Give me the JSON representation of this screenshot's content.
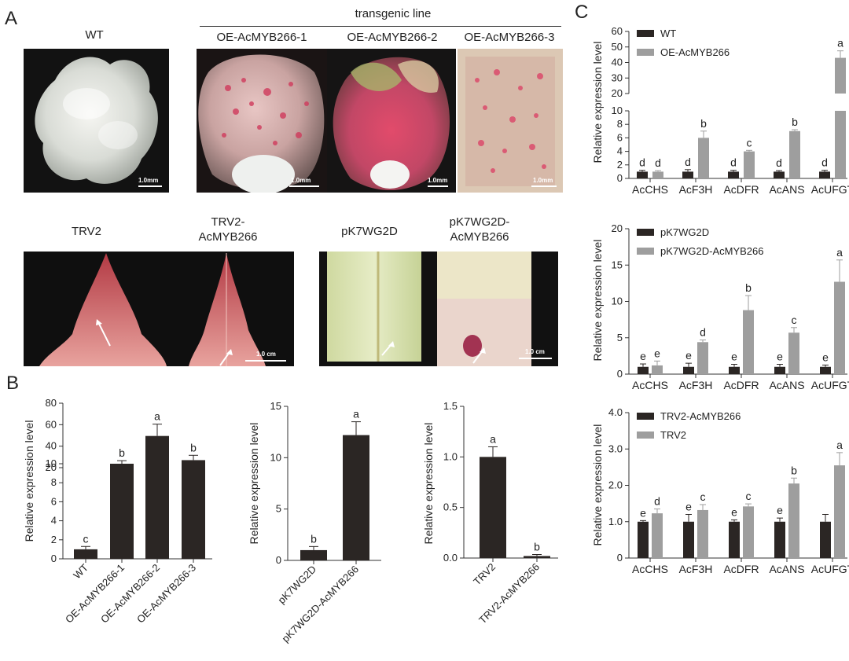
{
  "panel_labels": {
    "a": "A",
    "b": "B",
    "c": "C"
  },
  "panelA": {
    "wt_label": "WT",
    "transgenic_header": "transgenic line",
    "oe_labels": [
      "OE-AcMYB266-1",
      "OE-AcMYB266-2",
      "OE-AcMYB266-3"
    ],
    "scale_mm": "1.0mm",
    "trv2_label": "TRV2",
    "trv2_my_label": "TRV2-\nAcMYB266",
    "pk_label": "pK7WG2D",
    "pk_my_label": "pK7WG2D-\nAcMYB266",
    "scale_cm": "1.0 cm"
  },
  "chart_data": [
    {
      "id": "B1",
      "type": "bar",
      "ylabel": "Relative expression level",
      "categories": [
        "WT",
        "OE-AcMYB266-1",
        "OE-AcMYB266-2",
        "OE-AcMYB266-3"
      ],
      "values": [
        1.0,
        21.5,
        49.5,
        27.0
      ],
      "errors": [
        0.3,
        5.0,
        11.0,
        4.5
      ],
      "letters": [
        "c",
        "b",
        "a",
        "b"
      ],
      "y_axis": "broken",
      "lower_range": [
        0,
        10
      ],
      "upper_range": [
        20,
        80
      ],
      "lower_ticks": [
        "0",
        "2",
        "4",
        "6",
        "8",
        "10"
      ],
      "upper_ticks": [
        "20",
        "40",
        "60",
        "80"
      ],
      "color": "#2b2624"
    },
    {
      "id": "B2",
      "type": "bar",
      "ylabel": "Relative expression level",
      "categories": [
        "pK7WG2D",
        "pK7WG2D-AcMYB266"
      ],
      "values": [
        1.0,
        12.2
      ],
      "errors": [
        0.35,
        1.3
      ],
      "letters": [
        "b",
        "a"
      ],
      "ylim": [
        0,
        15
      ],
      "ticks": [
        "0",
        "5",
        "10",
        "15"
      ],
      "color": "#2b2624"
    },
    {
      "id": "B3",
      "type": "bar",
      "ylabel": "Relative expression level",
      "categories": [
        "TRV2",
        "TRV2-AcMYB266"
      ],
      "values": [
        1.0,
        0.02
      ],
      "errors": [
        0.1,
        0.015
      ],
      "letters": [
        "a",
        "b"
      ],
      "ylim": [
        0,
        1.5
      ],
      "ticks": [
        "0.0",
        "0.5",
        "1.0",
        "1.5"
      ],
      "color": "#2b2624"
    },
    {
      "id": "C1",
      "type": "bar",
      "ylabel": "Relative expression level",
      "categories": [
        "AcCHS",
        "AcF3H",
        "AcDFR",
        "AcANS",
        "AcUFGT"
      ],
      "series": [
        {
          "name": "WT",
          "values": [
            1.0,
            1.0,
            1.0,
            1.0,
            1.0
          ],
          "errors": [
            0.2,
            0.3,
            0.2,
            0.15,
            0.2
          ],
          "letters": [
            "d",
            "d",
            "d",
            "d",
            "d"
          ],
          "color": "#2b2624"
        },
        {
          "name": "OE-AcMYB266",
          "values": [
            1.0,
            6.0,
            4.0,
            7.0,
            43.0
          ],
          "errors": [
            0.15,
            1.0,
            0.15,
            0.2,
            4.5
          ],
          "letters": [
            "d",
            "b",
            "c",
            "b",
            "a"
          ],
          "color": "#9e9e9e"
        }
      ],
      "y_axis": "broken",
      "lower_range": [
        0,
        10
      ],
      "upper_range": [
        20,
        60
      ],
      "lower_ticks": [
        "0",
        "2",
        "4",
        "6",
        "8",
        "10"
      ],
      "upper_ticks": [
        "20",
        "30",
        "40",
        "50",
        "60"
      ],
      "legend": "top-left"
    },
    {
      "id": "C2",
      "type": "bar",
      "ylabel": "Relative expression level",
      "categories": [
        "AcCHS",
        "AcF3H",
        "AcDFR",
        "AcANS",
        "AcUFGT"
      ],
      "series": [
        {
          "name": "pK7WG2D",
          "values": [
            1.0,
            1.0,
            1.0,
            1.0,
            1.0
          ],
          "errors": [
            0.4,
            0.5,
            0.35,
            0.35,
            0.25
          ],
          "letters": [
            "e",
            "e",
            "e",
            "e",
            "e"
          ],
          "color": "#2b2624"
        },
        {
          "name": "pK7WG2D-AcMYB266",
          "values": [
            1.2,
            4.4,
            8.8,
            5.7,
            12.7
          ],
          "errors": [
            0.6,
            0.3,
            2.0,
            0.7,
            3.0
          ],
          "letters": [
            "e",
            "d",
            "b",
            "c",
            "a"
          ],
          "color": "#9e9e9e"
        }
      ],
      "ylim": [
        0,
        20
      ],
      "ticks": [
        "0",
        "5",
        "10",
        "15",
        "20"
      ],
      "legend": "top-left"
    },
    {
      "id": "C3",
      "type": "bar",
      "ylabel": "Relative expression level",
      "categories": [
        "AcCHS",
        "AcF3H",
        "AcDFR",
        "AcANS",
        "AcUFGT"
      ],
      "series": [
        {
          "name": "TRV2-AcMYB266",
          "values": [
            1.0,
            1.0,
            1.0,
            1.0,
            1.0
          ],
          "errors": [
            0.03,
            0.2,
            0.05,
            0.1,
            0.2
          ],
          "letters": [
            "e",
            "e",
            "e",
            "e",
            ""
          ],
          "color": "#2b2624"
        },
        {
          "name": "TRV2",
          "values": [
            1.23,
            1.32,
            1.42,
            2.05,
            2.55
          ],
          "errors": [
            0.12,
            0.15,
            0.07,
            0.15,
            0.35
          ],
          "letters": [
            "d",
            "c",
            "c",
            "b",
            "a"
          ],
          "color": "#9e9e9e"
        }
      ],
      "ylim": [
        0,
        4
      ],
      "ticks": [
        "0",
        "1.0",
        "2.0",
        "3.0",
        "4.0"
      ],
      "legend": "top-left"
    }
  ]
}
